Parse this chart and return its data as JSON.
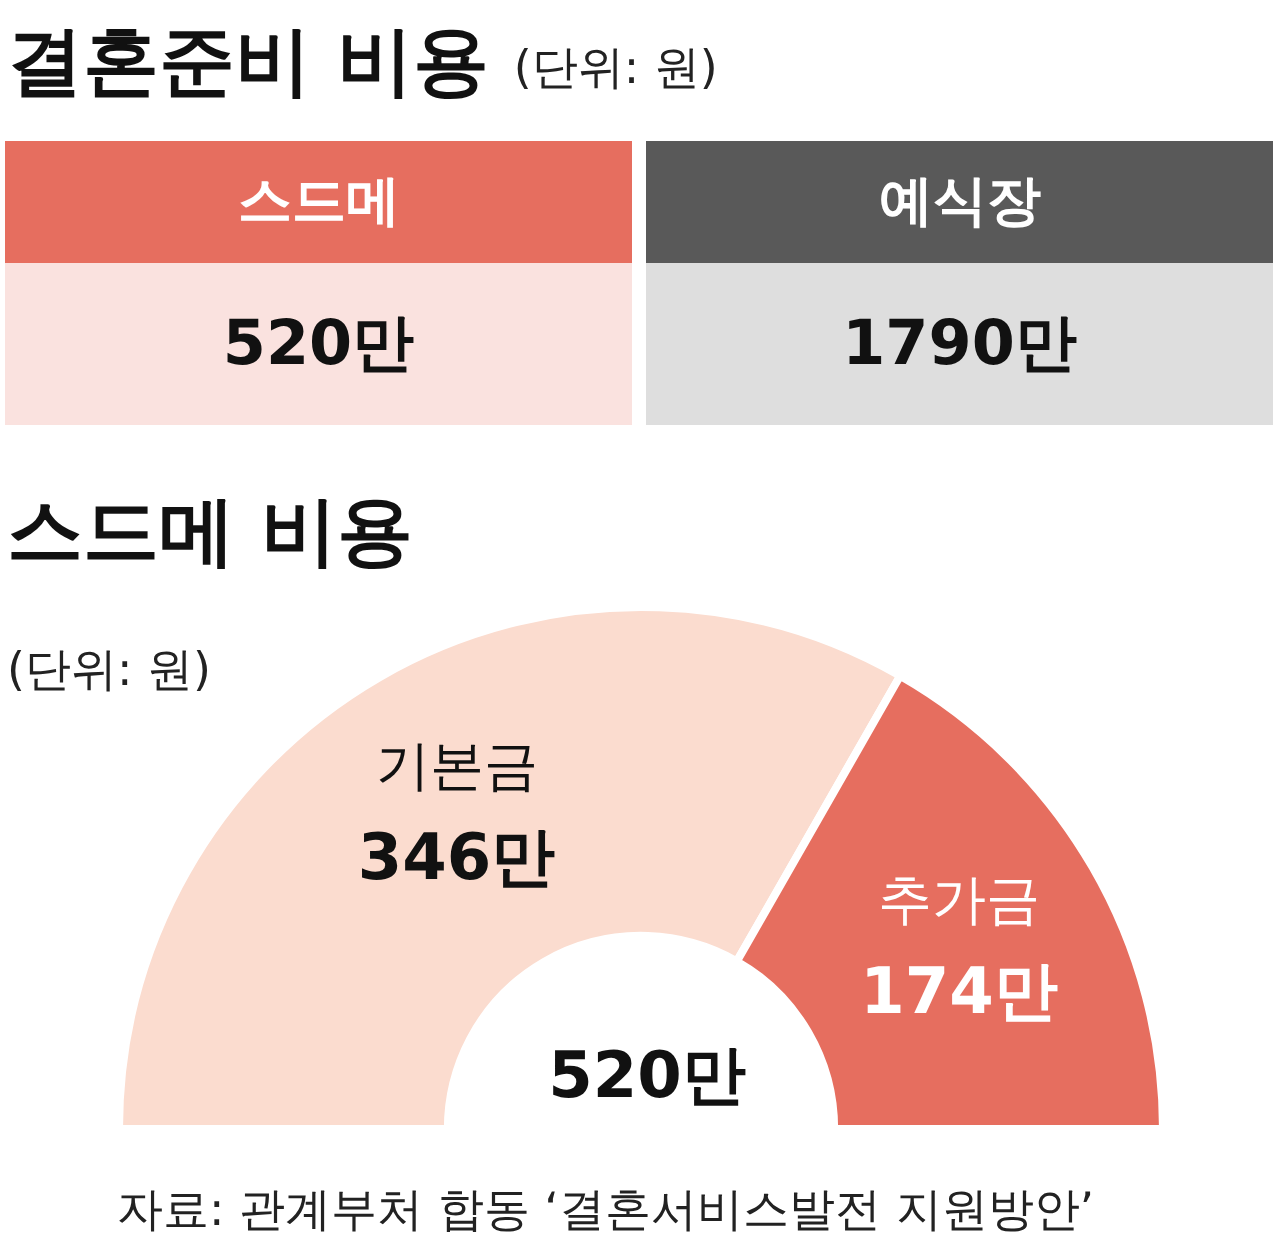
{
  "chart_data": [
    {
      "type": "other",
      "title": "결혼준비 비용",
      "subtitle": "(단위: 원)",
      "categories": [
        "스드메",
        "예식장"
      ],
      "value_labels": [
        "520만",
        "1790만"
      ],
      "colors": [
        "#e66e5f",
        "#595959"
      ]
    },
    {
      "type": "donut",
      "title": "스드메 비용",
      "subtitle": "(단위: 원)",
      "categories": [
        "기본금",
        "추가금"
      ],
      "values": [
        346,
        174
      ],
      "value_labels": [
        "346만",
        "174만"
      ],
      "colors": [
        "#fbdccf",
        "#e66e5f"
      ],
      "annotations": [
        "520만",
        "자료: 관계부처 합동 ‘결혼서비스발전 지원방안’"
      ]
    }
  ]
}
